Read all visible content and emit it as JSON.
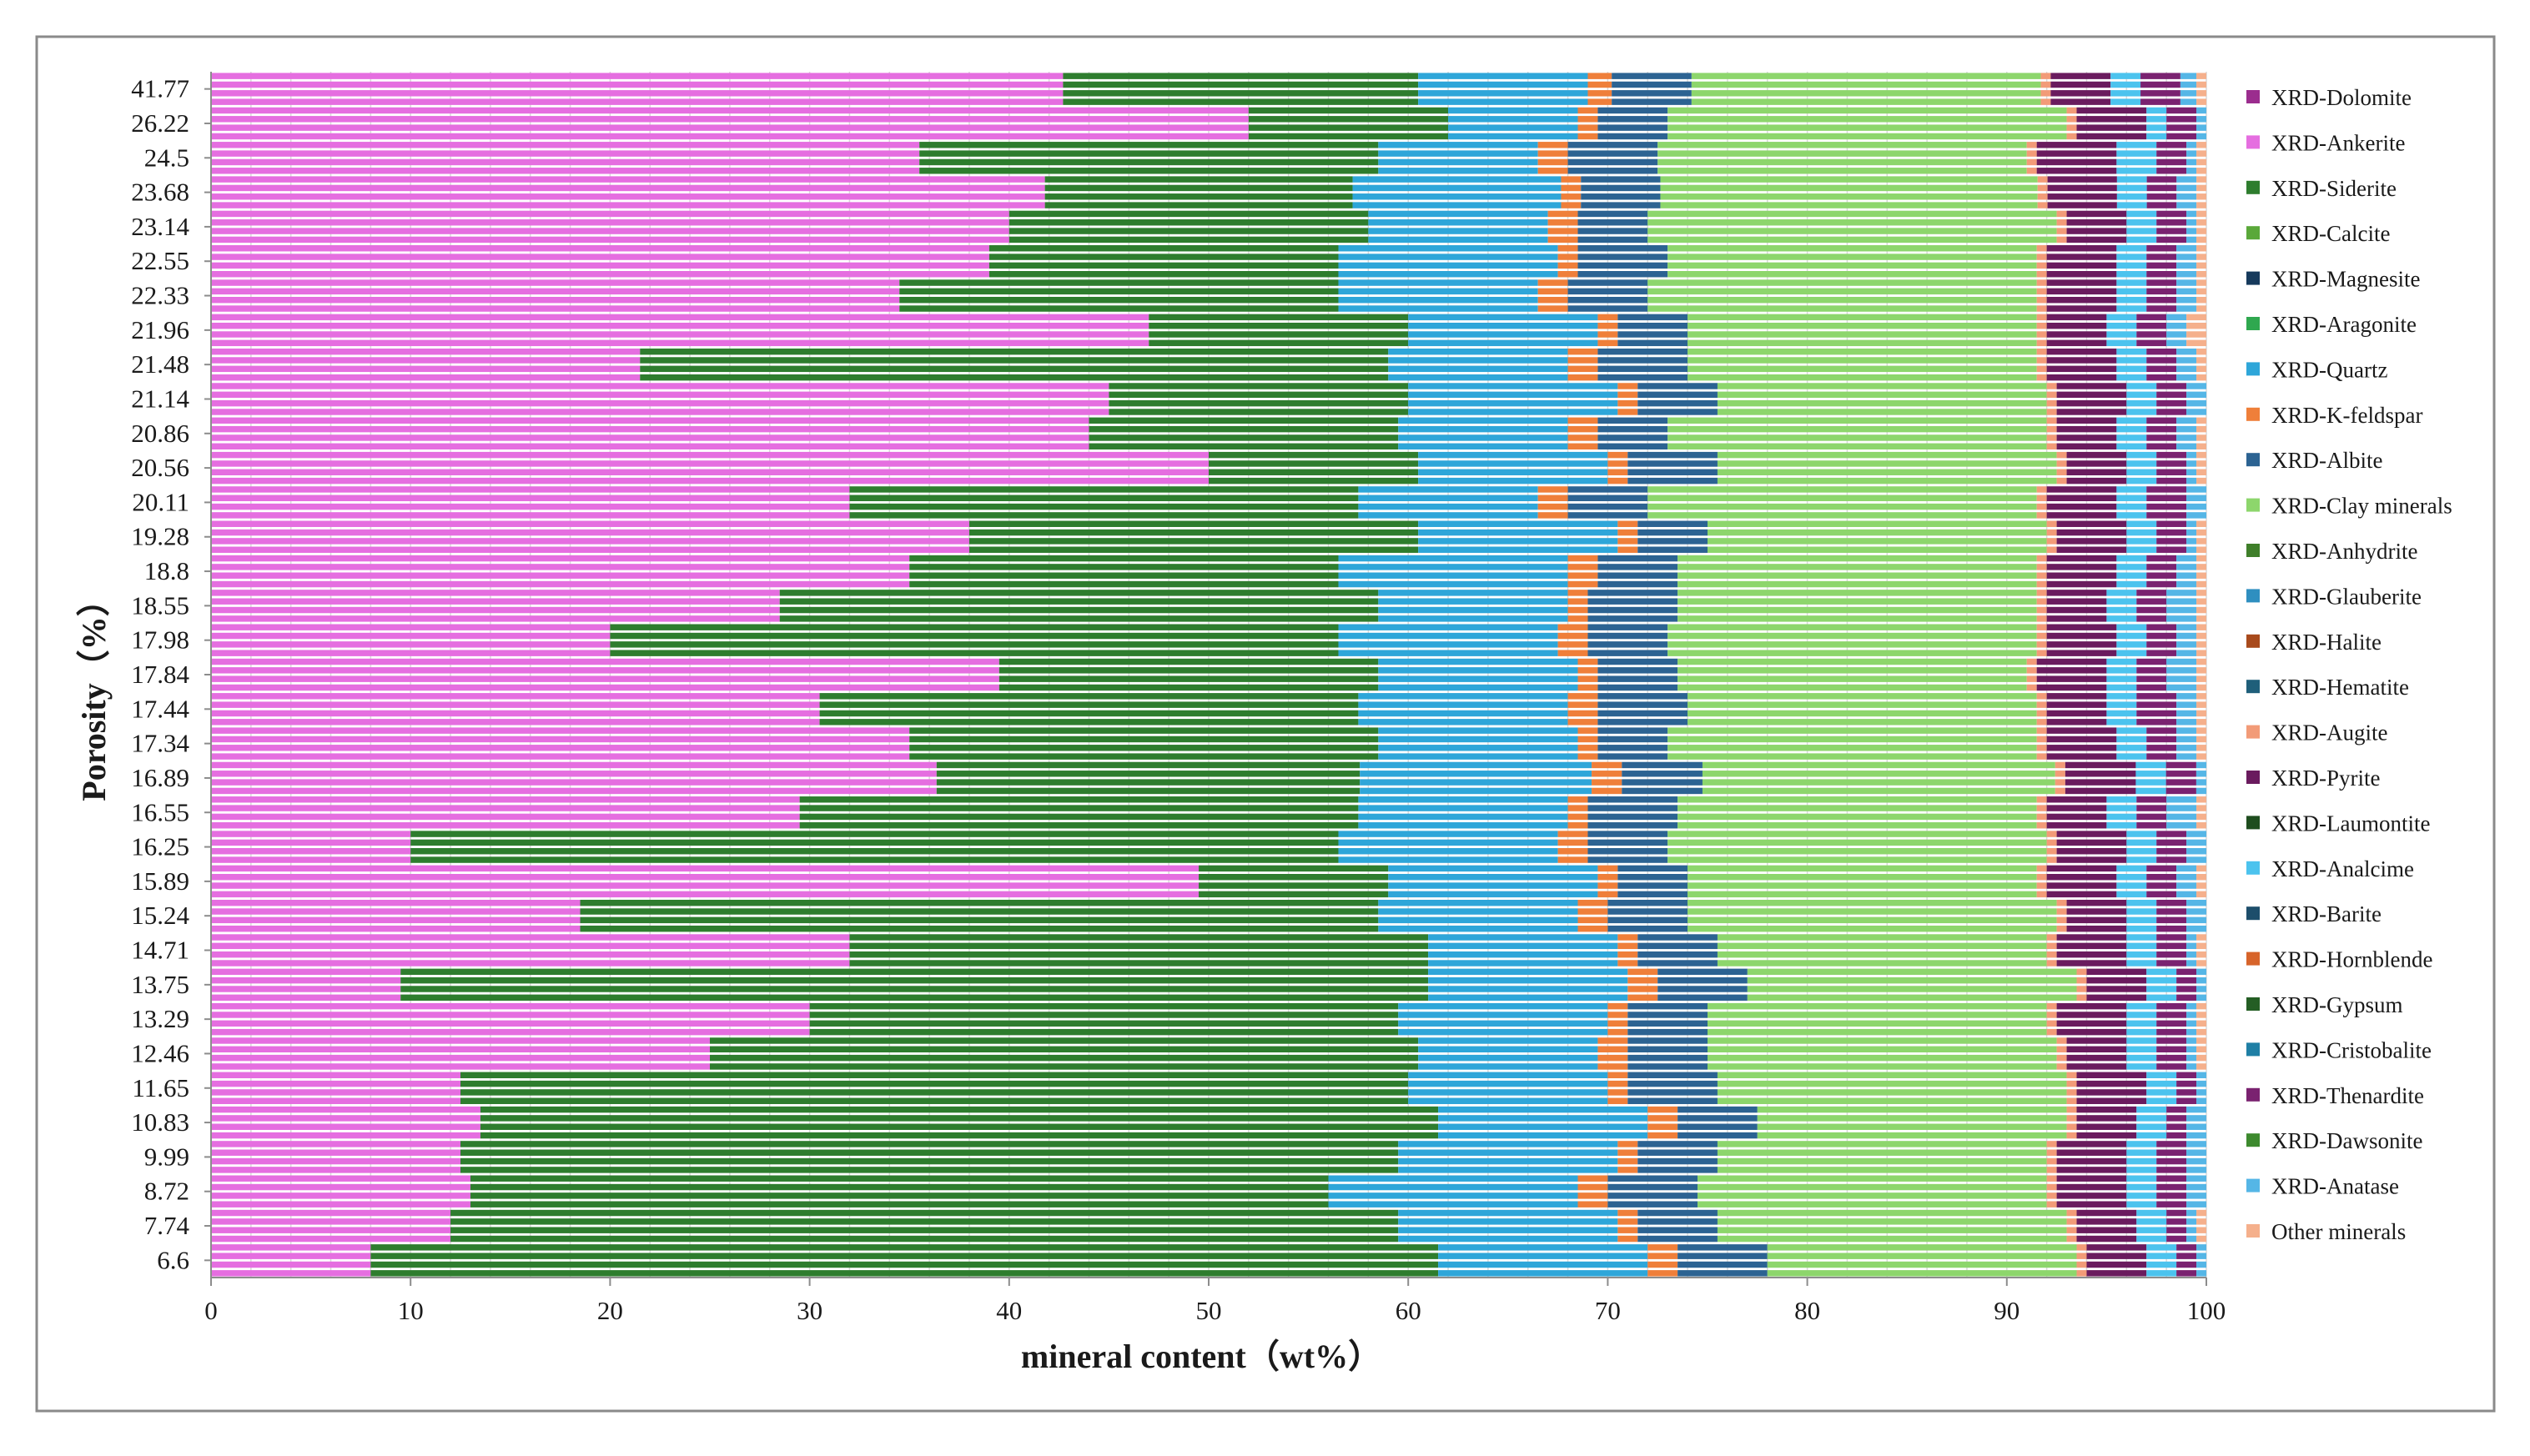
{
  "chart_data": {
    "type": "bar",
    "orientation": "horizontal",
    "stacked": true,
    "title": "",
    "xlabel": "mineral content（wt%）",
    "ylabel": "Porosity（%）",
    "xlim": [
      0,
      100
    ],
    "x_ticks": [
      0,
      10,
      20,
      30,
      40,
      50,
      60,
      70,
      80,
      90,
      100
    ],
    "grid": "vertical",
    "legend_position": "right",
    "y_tick_labels": [
      "41.77",
      "26.22",
      "24.5",
      "23.68",
      "23.14",
      "22.55",
      "22.33",
      "21.96",
      "21.48",
      "21.14",
      "20.86",
      "20.56",
      "20.11",
      "19.28",
      "18.8",
      "18.55",
      "17.98",
      "17.84",
      "17.44",
      "17.34",
      "16.89",
      "16.55",
      "16.25",
      "15.89",
      "15.24",
      "14.71",
      "13.75",
      "13.29",
      "12.46",
      "11.65",
      "10.83",
      "9.99",
      "8.72",
      "7.74",
      "6.6"
    ],
    "series": [
      {
        "name": "XRD-Dolomite",
        "color": "#9b2d8e"
      },
      {
        "name": "XRD-Ankerite",
        "color": "#e56ee0"
      },
      {
        "name": "XRD-Siderite",
        "color": "#2e7d2e"
      },
      {
        "name": "XRD-Calcite",
        "color": "#5aa83a"
      },
      {
        "name": "XRD-Magnesite",
        "color": "#163a5c"
      },
      {
        "name": "XRD-Aragonite",
        "color": "#2fa84f"
      },
      {
        "name": "XRD-Quartz",
        "color": "#2ea6d9"
      },
      {
        "name": "XRD-K-feldspar",
        "color": "#ef7f3a"
      },
      {
        "name": "XRD-Albite",
        "color": "#2c6392"
      },
      {
        "name": "XRD-Clay minerals",
        "color": "#8dd66c"
      },
      {
        "name": "XRD-Anhydrite",
        "color": "#3f7f2a"
      },
      {
        "name": "XRD-Glauberite",
        "color": "#2f8fc0"
      },
      {
        "name": "XRD-Halite",
        "color": "#a84a1c"
      },
      {
        "name": "XRD-Hematite",
        "color": "#1f5f7a"
      },
      {
        "name": "XRD-Augite",
        "color": "#f29b78"
      },
      {
        "name": "XRD-Pyrite",
        "color": "#6a1b5e"
      },
      {
        "name": "XRD-Laumontite",
        "color": "#1e4d1e"
      },
      {
        "name": "XRD-Analcime",
        "color": "#4cc3ee"
      },
      {
        "name": "XRD-Barite",
        "color": "#1d4e6b"
      },
      {
        "name": "XRD-Hornblende",
        "color": "#d7642a"
      },
      {
        "name": "XRD-Gypsum",
        "color": "#245e24"
      },
      {
        "name": "XRD-Cristobalite",
        "color": "#1f7fa5"
      },
      {
        "name": "XRD-Thenardite",
        "color": "#7a2270"
      },
      {
        "name": "XRD-Dawsonite",
        "color": "#3d8a2e"
      },
      {
        "name": "XRD-Anatase",
        "color": "#55b6e6"
      },
      {
        "name": "Other minerals",
        "color": "#f5b08c"
      }
    ],
    "rows": [
      {
        "porosity": "41.77",
        "values": [
          0,
          42.7,
          17.8,
          0,
          0,
          0,
          8.5,
          1.2,
          4.0,
          17.5,
          0,
          0,
          0,
          0,
          0.5,
          3.0,
          0,
          1.5,
          0,
          0,
          0,
          0,
          2.0,
          0,
          0.8,
          0.5
        ]
      },
      {
        "porosity": "26.22",
        "values": [
          0,
          52.0,
          10.0,
          0,
          0,
          0,
          6.5,
          1.0,
          3.5,
          20.0,
          0,
          0,
          0,
          0,
          0.5,
          3.5,
          0,
          1.0,
          0,
          0,
          0,
          0,
          1.5,
          0,
          0.5,
          0
        ]
      },
      {
        "porosity": "24.5",
        "values": [
          0,
          35.5,
          23.0,
          0,
          0,
          0,
          8.0,
          1.5,
          4.5,
          18.5,
          0,
          0,
          0,
          0,
          0.5,
          4.0,
          0,
          2.0,
          0,
          0,
          0,
          0,
          1.5,
          0,
          0.5,
          0.5
        ]
      },
      {
        "porosity": "23.68",
        "values": [
          0,
          42.0,
          15.5,
          0,
          0,
          0,
          10.5,
          1.0,
          4.0,
          19.0,
          0,
          0,
          0,
          0,
          0.5,
          3.5,
          0,
          1.5,
          0,
          0,
          0,
          0,
          1.5,
          0,
          1.0,
          0.5
        ]
      },
      {
        "porosity": "23.14",
        "values": [
          0,
          40.0,
          18.0,
          0,
          0,
          0,
          9.0,
          1.5,
          3.5,
          20.5,
          0,
          0,
          0,
          0,
          0.5,
          3.0,
          0,
          1.5,
          0,
          0,
          0,
          0,
          1.5,
          0,
          0.5,
          0.5
        ]
      },
      {
        "porosity": "22.55",
        "values": [
          0,
          39.0,
          17.5,
          0,
          0,
          0,
          11.0,
          1.0,
          4.5,
          18.5,
          0,
          0,
          0,
          0,
          0.5,
          3.5,
          0,
          1.5,
          0,
          0,
          0,
          0,
          1.5,
          0,
          1.0,
          0.5
        ]
      },
      {
        "porosity": "22.33",
        "values": [
          0,
          34.5,
          22.0,
          0,
          0,
          0,
          10.0,
          1.5,
          4.0,
          19.5,
          0,
          0,
          0,
          0,
          0.5,
          3.5,
          0,
          1.5,
          0,
          0,
          0,
          0,
          1.5,
          0,
          1.0,
          0.5
        ]
      },
      {
        "porosity": "21.96",
        "values": [
          0,
          47.0,
          13.0,
          0,
          0,
          0,
          9.5,
          1.0,
          3.5,
          17.5,
          0,
          0,
          0,
          0,
          0.5,
          3.0,
          0,
          1.5,
          0,
          0,
          0,
          0,
          1.5,
          0,
          1.0,
          1.0
        ]
      },
      {
        "porosity": "21.48",
        "values": [
          0,
          21.5,
          37.5,
          0,
          0,
          0,
          9.0,
          1.5,
          4.5,
          17.5,
          0,
          0,
          0,
          0,
          0.5,
          3.5,
          0,
          1.5,
          0,
          0,
          0,
          0,
          1.5,
          0,
          1.0,
          0.5
        ]
      },
      {
        "porosity": "21.14",
        "values": [
          0,
          45.0,
          15.0,
          0,
          0,
          0,
          10.5,
          1.0,
          4.0,
          16.5,
          0,
          0,
          0,
          0,
          0.5,
          3.5,
          0,
          1.5,
          0,
          0,
          0,
          0,
          1.5,
          0,
          1.0,
          0
        ]
      },
      {
        "porosity": "20.86",
        "values": [
          0,
          44.0,
          15.5,
          0,
          0,
          0,
          8.5,
          1.5,
          3.5,
          19.0,
          0,
          0,
          0,
          0,
          0.5,
          3.0,
          0,
          1.5,
          0,
          0,
          0,
          0,
          1.5,
          0,
          1.0,
          0.5
        ]
      },
      {
        "porosity": "20.56",
        "values": [
          0,
          50.0,
          10.5,
          0,
          0,
          0,
          9.5,
          1.0,
          4.5,
          17.0,
          0,
          0,
          0,
          0,
          0.5,
          3.0,
          0,
          1.5,
          0,
          0,
          0,
          0,
          1.5,
          0,
          0.5,
          0.5
        ]
      },
      {
        "porosity": "20.11",
        "values": [
          0,
          32.0,
          25.5,
          0,
          0,
          0,
          9.0,
          1.5,
          4.0,
          19.5,
          0,
          0,
          0,
          0,
          0.5,
          3.5,
          0,
          1.5,
          0,
          0,
          0,
          0,
          2.0,
          0,
          1.0,
          0
        ]
      },
      {
        "porosity": "19.28",
        "values": [
          0,
          38.0,
          22.5,
          0,
          0,
          0,
          10.0,
          1.0,
          3.5,
          17.0,
          0,
          0,
          0,
          0,
          0.5,
          3.5,
          0,
          1.5,
          0,
          0,
          0,
          0,
          1.5,
          0,
          0.5,
          0.5
        ]
      },
      {
        "porosity": "18.8",
        "values": [
          0,
          35.0,
          21.5,
          0,
          0,
          0,
          11.5,
          1.5,
          4.0,
          18.0,
          0,
          0,
          0,
          0,
          0.5,
          3.5,
          0,
          1.5,
          0,
          0,
          0,
          0,
          1.5,
          0,
          1.0,
          0.5
        ]
      },
      {
        "porosity": "18.55",
        "values": [
          0,
          28.5,
          30.0,
          0,
          0,
          0,
          9.5,
          1.0,
          4.5,
          18.0,
          0,
          0,
          0,
          0,
          0.5,
          3.0,
          0,
          1.5,
          0,
          0,
          0,
          0,
          1.5,
          0,
          1.5,
          0.5
        ]
      },
      {
        "porosity": "17.98",
        "values": [
          0,
          20.0,
          36.5,
          0,
          0,
          0,
          11.0,
          1.5,
          4.0,
          18.5,
          0,
          0,
          0,
          0,
          0.5,
          3.5,
          0,
          1.5,
          0,
          0,
          0,
          0,
          1.5,
          0,
          1.0,
          0.5
        ]
      },
      {
        "porosity": "17.84",
        "values": [
          0,
          39.5,
          19.0,
          0,
          0,
          0,
          10.0,
          1.0,
          4.0,
          17.5,
          0,
          0,
          0,
          0,
          0.5,
          3.5,
          0,
          1.5,
          0,
          0,
          0,
          0,
          1.5,
          0,
          1.5,
          0.5
        ]
      },
      {
        "porosity": "17.44",
        "values": [
          0,
          30.5,
          27.0,
          0,
          0,
          0,
          10.5,
          1.5,
          4.5,
          17.5,
          0,
          0,
          0,
          0,
          0.5,
          3.0,
          0,
          1.5,
          0,
          0,
          0,
          0,
          2.0,
          0,
          1.0,
          0.5
        ]
      },
      {
        "porosity": "17.34",
        "values": [
          0,
          35.0,
          23.5,
          0,
          0,
          0,
          10.0,
          1.0,
          3.5,
          18.5,
          0,
          0,
          0,
          0,
          0.5,
          3.5,
          0,
          1.5,
          0,
          0,
          0,
          0,
          1.5,
          0,
          1.0,
          0.5
        ]
      },
      {
        "porosity": "16.89",
        "values": [
          0,
          36.0,
          21.0,
          0,
          0,
          0,
          11.5,
          1.5,
          4.0,
          17.5,
          0,
          0,
          0,
          0,
          0.5,
          3.5,
          0,
          1.5,
          0,
          0,
          0,
          0,
          1.5,
          0,
          0.5,
          0
        ]
      },
      {
        "porosity": "16.55",
        "values": [
          0,
          29.5,
          28.0,
          0,
          0,
          0,
          10.5,
          1.0,
          4.5,
          18.0,
          0,
          0,
          0,
          0,
          0.5,
          3.0,
          0,
          1.5,
          0,
          0,
          0,
          0,
          1.5,
          0,
          1.5,
          0.5
        ]
      },
      {
        "porosity": "16.25",
        "values": [
          0,
          10.0,
          46.5,
          0,
          0,
          0,
          11.0,
          1.5,
          4.0,
          19.0,
          0,
          0,
          0,
          0,
          0.5,
          3.5,
          0,
          1.5,
          0,
          0,
          0,
          0,
          1.5,
          0,
          1.0,
          0
        ]
      },
      {
        "porosity": "15.89",
        "values": [
          0,
          49.5,
          9.5,
          0,
          0,
          0,
          10.5,
          1.0,
          3.5,
          17.5,
          0,
          0,
          0,
          0,
          0.5,
          3.5,
          0,
          1.5,
          0,
          0,
          0,
          0,
          1.5,
          0,
          1.0,
          0.5
        ]
      },
      {
        "porosity": "15.24",
        "values": [
          0,
          18.5,
          40.0,
          0,
          0,
          0,
          10.0,
          1.5,
          4.0,
          18.5,
          0,
          0,
          0,
          0,
          0.5,
          3.0,
          0,
          1.5,
          0,
          0,
          0,
          0,
          1.5,
          0,
          1.0,
          0
        ]
      },
      {
        "porosity": "14.71",
        "values": [
          0,
          32.0,
          29.0,
          0,
          0,
          0,
          9.5,
          1.0,
          4.0,
          16.5,
          0,
          0,
          0,
          0,
          0.5,
          3.5,
          0,
          1.5,
          0,
          0,
          0,
          0,
          1.5,
          0,
          0.5,
          0.5
        ]
      },
      {
        "porosity": "13.75",
        "values": [
          0,
          9.5,
          51.5,
          0,
          0,
          0,
          10.0,
          1.5,
          4.5,
          16.5,
          0,
          0,
          0,
          0,
          0.5,
          3.0,
          0,
          1.5,
          0,
          0,
          0,
          0,
          1.0,
          0,
          0.5,
          0
        ]
      },
      {
        "porosity": "13.29",
        "values": [
          0,
          30.0,
          29.5,
          0,
          0,
          0,
          10.5,
          1.0,
          4.0,
          17.0,
          0,
          0,
          0,
          0,
          0.5,
          3.5,
          0,
          1.5,
          0,
          0,
          0,
          0,
          1.5,
          0,
          0.5,
          0.5
        ]
      },
      {
        "porosity": "12.46",
        "values": [
          0,
          25.0,
          35.5,
          0,
          0,
          0,
          9.0,
          1.5,
          4.0,
          17.5,
          0,
          0,
          0,
          0,
          0.5,
          3.0,
          0,
          1.5,
          0,
          0,
          0,
          0,
          1.5,
          0,
          0.5,
          0.5
        ]
      },
      {
        "porosity": "11.65",
        "values": [
          0,
          12.5,
          47.5,
          0,
          0,
          0,
          10.0,
          1.0,
          4.5,
          17.5,
          0,
          0,
          0,
          0,
          0.5,
          3.5,
          0,
          1.5,
          0,
          0,
          0,
          0,
          1.0,
          0,
          0.5,
          0
        ]
      },
      {
        "porosity": "10.83",
        "values": [
          0,
          13.5,
          48.0,
          0,
          0,
          0,
          10.5,
          1.5,
          4.0,
          15.5,
          0,
          0,
          0,
          0,
          0.5,
          3.0,
          0,
          1.5,
          0,
          0,
          0,
          0,
          1.0,
          0,
          1.0,
          0
        ]
      },
      {
        "porosity": "9.99",
        "values": [
          0,
          12.5,
          47.0,
          0,
          0,
          0,
          11.0,
          1.0,
          4.0,
          16.5,
          0,
          0,
          0,
          0,
          0.5,
          3.5,
          0,
          1.5,
          0,
          0,
          0,
          0,
          1.5,
          0,
          1.0,
          0
        ]
      },
      {
        "porosity": "8.72",
        "values": [
          0,
          13.0,
          43.0,
          0,
          0,
          0,
          12.5,
          1.5,
          4.5,
          17.5,
          0,
          0,
          0,
          0,
          0.5,
          3.5,
          0,
          1.5,
          0,
          0,
          0,
          0,
          1.5,
          0,
          1.0,
          0
        ]
      },
      {
        "porosity": "7.74",
        "values": [
          0,
          12.0,
          47.5,
          0,
          0,
          0,
          11.0,
          1.0,
          4.0,
          17.5,
          0,
          0,
          0,
          0,
          0.5,
          3.0,
          0,
          1.5,
          0,
          0,
          0,
          0,
          1.0,
          0,
          0.5,
          0.5
        ]
      },
      {
        "porosity": "6.6",
        "values": [
          0,
          8.0,
          53.5,
          0,
          0,
          0,
          10.5,
          1.5,
          4.5,
          15.5,
          0,
          0,
          0,
          0,
          0.5,
          3.0,
          0,
          1.5,
          0,
          0,
          0,
          0,
          1.0,
          0,
          0.5,
          0
        ]
      }
    ]
  }
}
